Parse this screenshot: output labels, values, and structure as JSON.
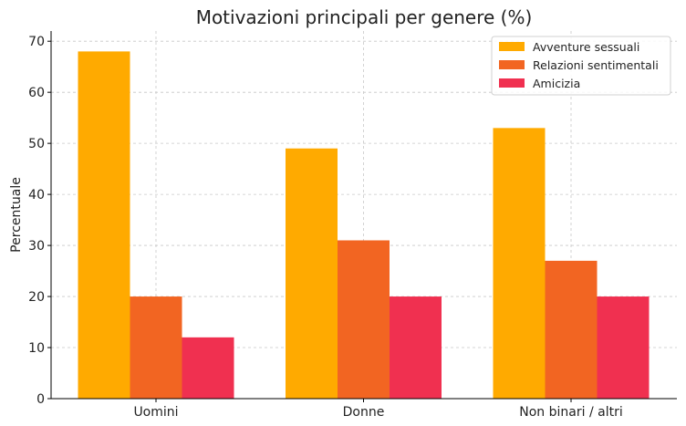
{
  "chart_data": {
    "type": "bar",
    "title": "Motivazioni principali per genere (%)",
    "xlabel": "",
    "ylabel": "Percentuale",
    "categories": [
      "Uomini",
      "Donne",
      "Non binari / altri"
    ],
    "series": [
      {
        "name": "Avventure sessuali",
        "values": [
          68,
          49,
          53
        ],
        "color": "#FFAA00"
      },
      {
        "name": "Relazioni sentimentali",
        "values": [
          20,
          31,
          27
        ],
        "color": "#F26522"
      },
      {
        "name": "Amicizia",
        "values": [
          12,
          20,
          20
        ],
        "color": "#F03050"
      }
    ],
    "ylim": [
      0,
      72
    ],
    "yticks": [
      0,
      10,
      20,
      30,
      40,
      50,
      60,
      70
    ],
    "grid": true,
    "legend_position": "top-right"
  }
}
